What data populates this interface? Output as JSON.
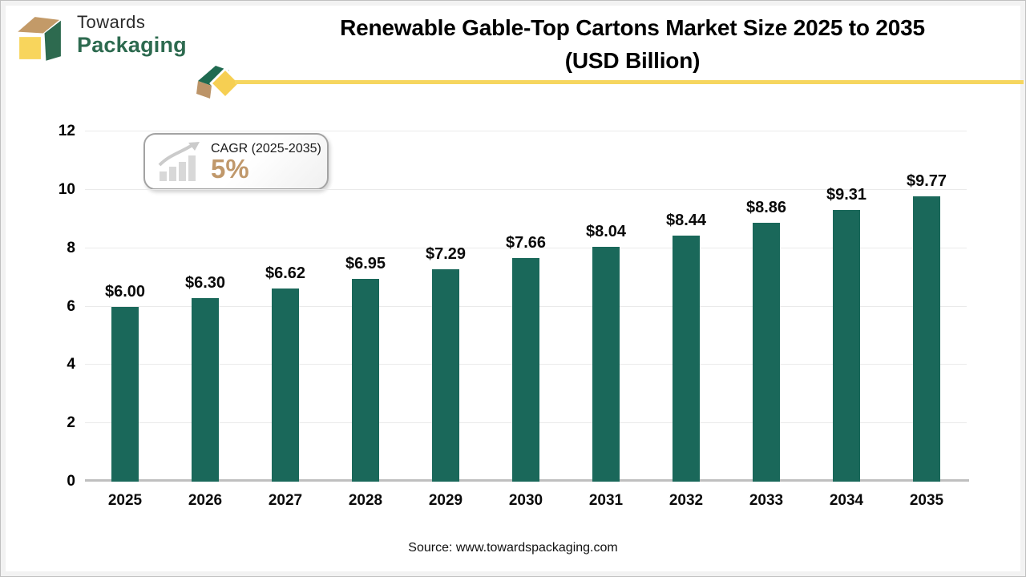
{
  "logo": {
    "line1": "Towards",
    "line2": "Packaging"
  },
  "header": {
    "title_line1": "Renewable Gable-Top Cartons Market Size 2025 to 2035",
    "title_line2": "(USD Billion)"
  },
  "cagr": {
    "label": "CAGR (2025-2035)",
    "value": "5%"
  },
  "chart_data": {
    "type": "bar",
    "title": "Renewable Gable-Top Cartons Market Size 2025 to 2035 (USD Billion)",
    "categories": [
      "2025",
      "2026",
      "2027",
      "2028",
      "2029",
      "2030",
      "2031",
      "2032",
      "2033",
      "2034",
      "2035"
    ],
    "values": [
      6.0,
      6.3,
      6.62,
      6.95,
      7.29,
      7.66,
      8.04,
      8.44,
      8.86,
      9.31,
      9.77
    ],
    "value_labels": [
      "$6.00",
      "$6.30",
      "$6.62",
      "$6.95",
      "$7.29",
      "$7.66",
      "$8.04",
      "$8.44",
      "$8.86",
      "$9.31",
      "$9.77"
    ],
    "unit": "USD Billion",
    "xlabel": "",
    "ylabel": "",
    "ylim": [
      0,
      12
    ],
    "yticks": [
      0,
      2,
      4,
      6,
      8,
      10,
      12
    ],
    "grid": true,
    "legend": "none",
    "bar_color": "#1A685A"
  },
  "footer": {
    "source": "Source: www.towardspackaging.com"
  },
  "colors": {
    "accent_yellow": "#F6D65F",
    "brand_green": "#2D6A4F",
    "brand_tan": "#C39A68",
    "cagr_value_tan": "#C0986B",
    "gridline": "#EAEAEA",
    "axis_line": "#BFBFBF"
  }
}
